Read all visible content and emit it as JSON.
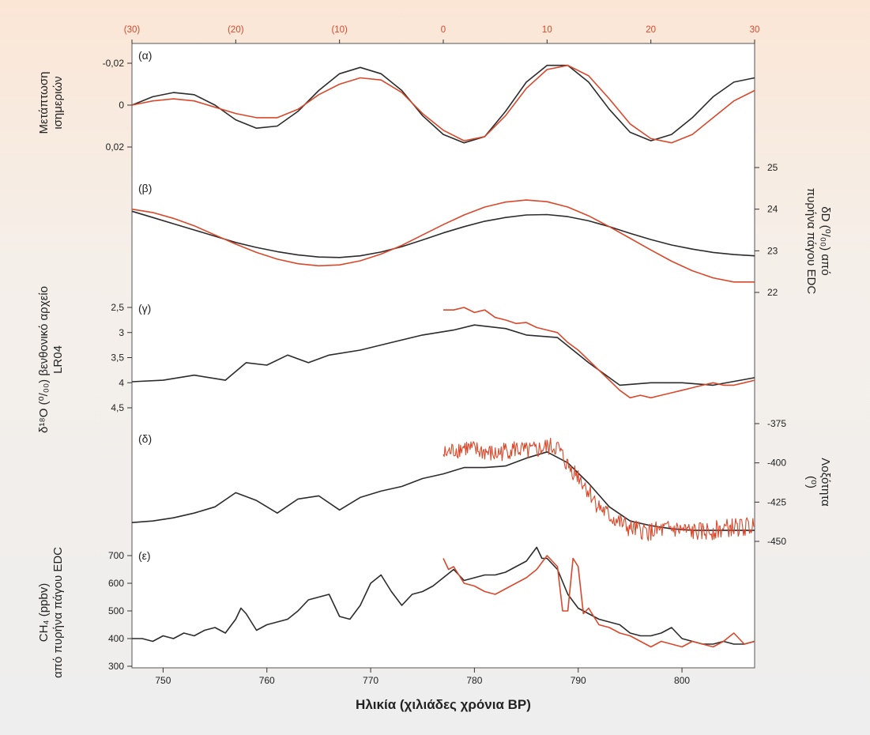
{
  "colors": {
    "black_series": "#2b2b2b",
    "red_series": "#d9482b",
    "top_axis_text": "#d9482b",
    "background_top": "#fbe6d6",
    "background_bottom": "#eeeeee"
  },
  "chart_data": {
    "type": "line",
    "xlabel": "Ηλικία (χιλιάδες χρόνια BP)",
    "x_ticks": [
      "750",
      "760",
      "770",
      "780",
      "790",
      "800"
    ],
    "xlim": [
      747,
      807
    ],
    "top_x_ticks": [
      "(30)",
      "(20)",
      "(10)",
      "0",
      "10",
      "20",
      "30"
    ],
    "top_xlim": [
      -30,
      30
    ],
    "panels": [
      {
        "label": "(α)",
        "ylabel": [
          "Μετάπτωση",
          "ισημεριών"
        ],
        "axis_side": "left",
        "ticks": [
          "-0,02",
          "0",
          "0,02"
        ],
        "ylim": [
          -0.02,
          0.02
        ],
        "inverted": true,
        "series": [
          {
            "color": "black",
            "x": [
              747,
              749,
              751,
              753,
              755,
              757,
              759,
              761,
              763,
              765,
              767,
              769,
              771,
              773,
              775,
              777,
              779,
              781,
              783,
              785,
              787,
              789,
              791,
              793,
              795,
              797,
              799,
              801,
              803,
              805,
              807
            ],
            "values": [
              0.0,
              -0.004,
              -0.006,
              -0.005,
              0.0,
              0.007,
              0.011,
              0.01,
              0.003,
              -0.007,
              -0.015,
              -0.018,
              -0.015,
              -0.007,
              0.005,
              0.014,
              0.018,
              0.015,
              0.003,
              -0.011,
              -0.019,
              -0.019,
              -0.011,
              0.002,
              0.013,
              0.017,
              0.014,
              0.006,
              -0.004,
              -0.011,
              -0.013
            ]
          },
          {
            "color": "red",
            "x": [
              747,
              749,
              751,
              753,
              755,
              757,
              759,
              761,
              763,
              765,
              767,
              769,
              771,
              773,
              775,
              777,
              779,
              781,
              783,
              785,
              787,
              789,
              791,
              793,
              795,
              797,
              799,
              801,
              803,
              805,
              807
            ],
            "values": [
              0.0,
              -0.002,
              -0.003,
              -0.002,
              0.001,
              0.004,
              0.006,
              0.006,
              0.002,
              -0.005,
              -0.01,
              -0.013,
              -0.012,
              -0.006,
              0.004,
              0.012,
              0.017,
              0.015,
              0.005,
              -0.008,
              -0.017,
              -0.019,
              -0.014,
              -0.003,
              0.009,
              0.016,
              0.018,
              0.014,
              0.006,
              -0.002,
              -0.007
            ]
          }
        ]
      },
      {
        "label": "(β)",
        "ylabel": [
          "δD (⁰/₀₀) από",
          "πυρήνα πάγου EDC"
        ],
        "axis_side": "right",
        "ticks": [
          "25",
          "24",
          "23",
          "22"
        ],
        "ylim": [
          22,
          25
        ],
        "inverted": false,
        "series": [
          {
            "color": "black",
            "x": [
              747,
              749,
              751,
              753,
              755,
              757,
              759,
              761,
              763,
              765,
              767,
              769,
              771,
              773,
              775,
              777,
              779,
              781,
              783,
              785,
              787,
              789,
              791,
              793,
              795,
              797,
              799,
              801,
              803,
              805,
              807
            ],
            "values": [
              23.95,
              23.8,
              23.65,
              23.5,
              23.35,
              23.2,
              23.08,
              22.98,
              22.9,
              22.85,
              22.84,
              22.88,
              22.97,
              23.1,
              23.26,
              23.43,
              23.58,
              23.71,
              23.8,
              23.86,
              23.87,
              23.82,
              23.72,
              23.58,
              23.42,
              23.27,
              23.14,
              23.04,
              22.96,
              22.91,
              22.88
            ]
          },
          {
            "color": "red",
            "x": [
              747,
              749,
              751,
              753,
              755,
              757,
              759,
              761,
              763,
              765,
              767,
              769,
              771,
              773,
              775,
              777,
              779,
              781,
              783,
              785,
              787,
              789,
              791,
              793,
              795,
              797,
              799,
              801,
              803,
              805,
              807
            ],
            "values": [
              24.0,
              23.92,
              23.78,
              23.6,
              23.38,
              23.16,
              22.96,
              22.8,
              22.69,
              22.64,
              22.66,
              22.76,
              22.92,
              23.13,
              23.38,
              23.63,
              23.86,
              24.05,
              24.17,
              24.22,
              24.18,
              24.05,
              23.84,
              23.58,
              23.3,
              23.02,
              22.75,
              22.52,
              22.35,
              22.25,
              22.25
            ]
          }
        ]
      },
      {
        "label": "(γ)",
        "ylabel": [
          "δ¹⁸O (⁰/₀₀) βενθονικό αρχείο",
          "LR04"
        ],
        "axis_side": "left",
        "ticks": [
          "2,5",
          "3",
          "3,5",
          "4",
          "4,5"
        ],
        "ylim": [
          2.5,
          4.5
        ],
        "inverted": true,
        "series": [
          {
            "color": "black",
            "x": [
              747,
              750,
              753,
              756,
              758,
              760,
              762,
              764,
              766,
              769,
              772,
              775,
              778,
              780,
              783,
              785,
              788,
              791,
              794,
              797,
              800,
              803,
              807
            ],
            "values": [
              3.98,
              3.95,
              3.85,
              3.95,
              3.6,
              3.65,
              3.45,
              3.6,
              3.45,
              3.35,
              3.2,
              3.05,
              2.95,
              2.85,
              2.92,
              3.05,
              3.1,
              3.6,
              4.05,
              4.0,
              4.0,
              4.05,
              3.9
            ]
          },
          {
            "color": "red",
            "x": [
              777,
              778,
              779,
              780,
              781,
              782,
              783,
              784,
              785,
              786,
              787,
              788,
              789,
              790,
              791,
              792,
              793,
              794,
              795,
              796,
              797,
              798,
              799,
              800,
              801,
              802,
              803,
              804,
              805,
              806,
              807
            ],
            "values": [
              2.55,
              2.55,
              2.5,
              2.6,
              2.55,
              2.7,
              2.75,
              2.82,
              2.8,
              2.9,
              2.95,
              3.0,
              3.2,
              3.35,
              3.55,
              3.75,
              3.95,
              4.15,
              4.3,
              4.25,
              4.3,
              4.25,
              4.2,
              4.15,
              4.1,
              4.05,
              4.0,
              4.05,
              4.05,
              4.0,
              3.95
            ]
          }
        ]
      },
      {
        "label": "(δ)",
        "ylabel": [
          "Λοξότητα",
          "(⁰)"
        ],
        "axis_side": "right",
        "ticks": [
          "-375",
          "-400",
          "-425",
          "-450"
        ],
        "ylim": [
          -450,
          -375
        ],
        "inverted": false,
        "series": [
          {
            "color": "black",
            "x": [
              747,
              749,
              751,
              753,
              755,
              757,
              759,
              761,
              763,
              765,
              767,
              769,
              771,
              773,
              775,
              777,
              779,
              781,
              783,
              785,
              787,
              789,
              791,
              793,
              795,
              797,
              799,
              801,
              803,
              805,
              807
            ],
            "values": [
              -438,
              -437,
              -435,
              -432,
              -428,
              -419,
              -424,
              -432,
              -423,
              -421,
              -430,
              -422,
              -418,
              -415,
              -410,
              -407,
              -403,
              -403,
              -402,
              -397,
              -393,
              -400,
              -413,
              -428,
              -437,
              -440,
              -442,
              -443,
              -443,
              -443,
              -443
            ]
          },
          {
            "color": "red",
            "noisy": true,
            "x": [
              777,
              778,
              779,
              780,
              781,
              782,
              783,
              784,
              785,
              786,
              787,
              788,
              789,
              790,
              791,
              792,
              793,
              794,
              795,
              796,
              797,
              798,
              799,
              800,
              801,
              802,
              803,
              804,
              805,
              806,
              807
            ],
            "values": [
              -395,
              -392,
              -390,
              -392,
              -393,
              -395,
              -392,
              -391,
              -393,
              -392,
              -390,
              -390,
              -402,
              -408,
              -418,
              -428,
              -434,
              -438,
              -442,
              -443,
              -444,
              -443,
              -442,
              -443,
              -444,
              -444,
              -443,
              -442,
              -441,
              -441,
              -440
            ]
          }
        ]
      },
      {
        "label": "(ε)",
        "ylabel": [
          "CH₄ (ppbv)",
          "από πυρήνα πάγου EDC"
        ],
        "axis_side": "left",
        "ticks": [
          "700",
          "600",
          "500",
          "400",
          "300"
        ],
        "ylim": [
          300,
          700
        ],
        "inverted": false,
        "series": [
          {
            "color": "black",
            "x": [
              747,
              748,
              749,
              750,
              751,
              752,
              753,
              754,
              755,
              756,
              757,
              757.5,
              758,
              759,
              760,
              761,
              762,
              763,
              764,
              765,
              766,
              767,
              768,
              769,
              770,
              771,
              772,
              773,
              774,
              775,
              776,
              777,
              778,
              779,
              780,
              781,
              782,
              783,
              784,
              785,
              786,
              786.5,
              787,
              788,
              789,
              790,
              791,
              792,
              793,
              794,
              795,
              796,
              797,
              798,
              799,
              800,
              801,
              802,
              803,
              804,
              805,
              806,
              807
            ],
            "values": [
              400,
              400,
              390,
              410,
              400,
              420,
              410,
              430,
              440,
              420,
              470,
              510,
              490,
              430,
              450,
              460,
              470,
              500,
              540,
              550,
              560,
              480,
              470,
              520,
              600,
              630,
              570,
              520,
              560,
              570,
              590,
              620,
              650,
              610,
              620,
              630,
              630,
              640,
              660,
              680,
              730,
              690,
              690,
              650,
              560,
              510,
              490,
              470,
              460,
              450,
              420,
              410,
              410,
              420,
              440,
              400,
              390,
              380,
              380,
              390,
              380,
              380,
              390
            ]
          },
          {
            "color": "red",
            "x": [
              777,
              777.5,
              778,
              779,
              780,
              781,
              782,
              783,
              784,
              785,
              786,
              787,
              788,
              788.5,
              789,
              789.5,
              790,
              790.5,
              791,
              791.5,
              792,
              793,
              794,
              795,
              796,
              797,
              798,
              799,
              800,
              801,
              802,
              803,
              804,
              805,
              806,
              807
            ],
            "values": [
              690,
              650,
              660,
              600,
              590,
              570,
              560,
              580,
              600,
              620,
              650,
              700,
              660,
              500,
              500,
              690,
              660,
              490,
              510,
              480,
              450,
              440,
              420,
              410,
              390,
              370,
              390,
              380,
              370,
              390,
              380,
              370,
              390,
              420,
              380,
              390
            ]
          }
        ]
      }
    ]
  }
}
